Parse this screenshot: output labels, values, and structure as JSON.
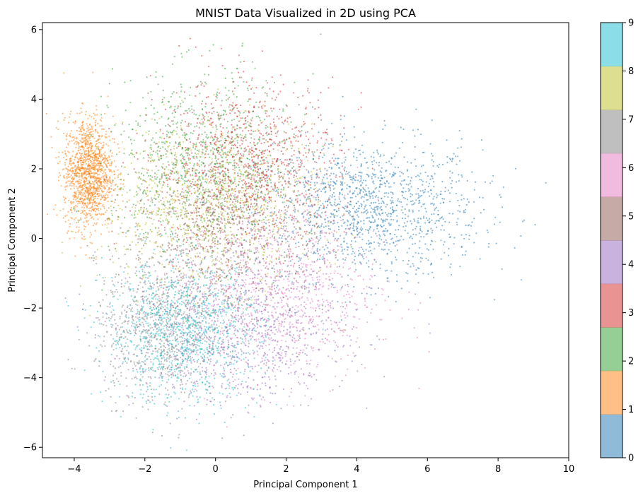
{
  "chart_data": {
    "type": "scatter",
    "title": "MNIST Data Visualized in 2D using PCA",
    "xlabel": "Principal Component 1",
    "ylabel": "Principal Component 2",
    "xlim": [
      -4.9,
      10.0
    ],
    "ylim": [
      -6.3,
      6.2
    ],
    "xticks": [
      -4,
      -2,
      0,
      2,
      4,
      6,
      8,
      10
    ],
    "yticks": [
      -6,
      -4,
      -2,
      0,
      2,
      4,
      6
    ],
    "grid": false,
    "colormap": "tab10",
    "colorbar": {
      "ticks": [
        0,
        1,
        2,
        3,
        4,
        5,
        6,
        7,
        8,
        9
      ],
      "colors": [
        "#1f77b4",
        "#ff7f0e",
        "#2ca02c",
        "#d62728",
        "#9467bd",
        "#8c564b",
        "#e377c2",
        "#7f7f7f",
        "#bcbd22",
        "#17becf"
      ]
    },
    "point_alpha": 0.5,
    "clusters": [
      {
        "label": 0,
        "color": "#1f77b4",
        "center": [
          4.3,
          0.8
        ],
        "spread": [
          1.6,
          1.0
        ],
        "count": 1400
      },
      {
        "label": 1,
        "color": "#ff7f0e",
        "center": [
          -3.6,
          1.9
        ],
        "spread": [
          0.35,
          0.8
        ],
        "count": 1300
      },
      {
        "label": 2,
        "color": "#2ca02c",
        "center": [
          -0.3,
          2.0
        ],
        "spread": [
          1.3,
          1.3
        ],
        "count": 1000
      },
      {
        "label": 3,
        "color": "#d62728",
        "center": [
          0.9,
          2.1
        ],
        "spread": [
          1.3,
          1.2
        ],
        "count": 1000
      },
      {
        "label": 4,
        "color": "#9467bd",
        "center": [
          0.7,
          -2.8
        ],
        "spread": [
          1.5,
          1.0
        ],
        "count": 900
      },
      {
        "label": 5,
        "color": "#8c564b",
        "center": [
          0.3,
          0.3
        ],
        "spread": [
          1.4,
          1.3
        ],
        "count": 900
      },
      {
        "label": 6,
        "color": "#e377c2",
        "center": [
          1.8,
          -1.5
        ],
        "spread": [
          1.4,
          1.3
        ],
        "count": 900
      },
      {
        "label": 7,
        "color": "#7f7f7f",
        "center": [
          -1.6,
          -2.6
        ],
        "spread": [
          0.9,
          1.0
        ],
        "count": 900
      },
      {
        "label": 8,
        "color": "#bcbd22",
        "center": [
          -0.2,
          1.0
        ],
        "spread": [
          1.5,
          1.2
        ],
        "count": 900
      },
      {
        "label": 9,
        "color": "#17becf",
        "center": [
          -0.9,
          -2.7
        ],
        "spread": [
          1.1,
          1.0
        ],
        "count": 1000
      }
    ]
  }
}
